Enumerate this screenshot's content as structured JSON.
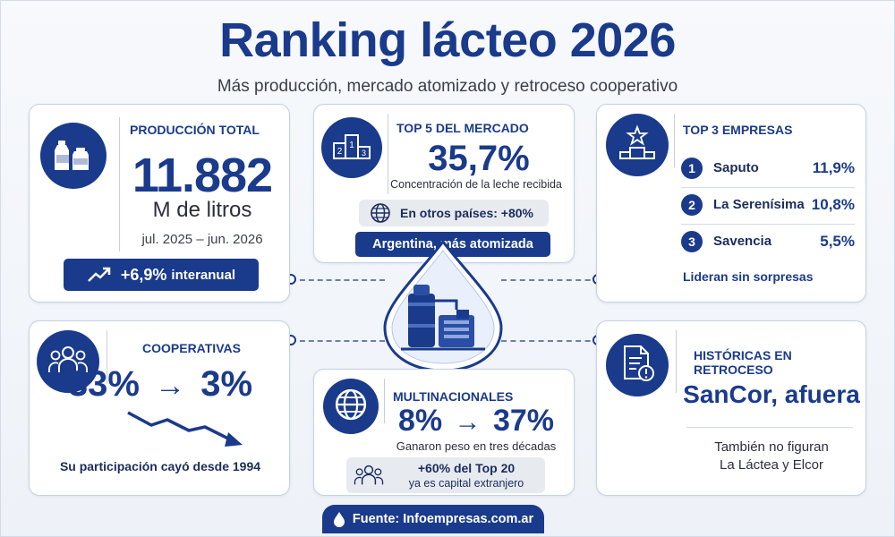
{
  "header": {
    "title": "Ranking lácteo 2026",
    "subtitle": "Más producción, mercado atomizado y retroceso cooperativo"
  },
  "produccion": {
    "label": "PRODUCCIÓN TOTAL",
    "value": "11.882",
    "unit": "M de litros",
    "period": "jul. 2025 – jun. 2026",
    "growth": "+6,9%",
    "growth_suffix": "interanual",
    "icon": "milk-bottles-icon"
  },
  "top5": {
    "label": "TOP 5 DEL MERCADO",
    "value": "35,7%",
    "caption": "Concentración de la leche recibida",
    "otros": "En otros países: +80%",
    "banner": "Argentina, más atomizada",
    "icon": "podium-icon"
  },
  "top3": {
    "label": "TOP 3 EMPRESAS",
    "items": [
      {
        "rank": "1",
        "name": "Saputo",
        "value": "11,9%"
      },
      {
        "rank": "2",
        "name": "La Serenísima",
        "value": "10,8%"
      },
      {
        "rank": "3",
        "name": "Savencia",
        "value": "5,5%"
      }
    ],
    "footer": "Lideran sin sorpresas",
    "icon": "star-podium-icon"
  },
  "cooperativas": {
    "label": "COOPERATIVAS",
    "from": "33%",
    "to": "3%",
    "arrow": "→",
    "caption": "Su participación cayó desde 1994",
    "icon": "people-group-icon"
  },
  "multinacionales": {
    "label": "MULTINACIONALES",
    "from": "8%",
    "to": "37%",
    "arrow": "→",
    "caption": "Ganaron peso en tres décadas",
    "note_line1": "+60% del Top 20",
    "note_line2": "ya es capital extranjero",
    "icon": "globe-icon"
  },
  "historicas": {
    "label": "HISTÓRICAS EN RETROCESO",
    "headline": "SanCor, afuera",
    "note_line1": "También no figuran",
    "note_line2": "La Láctea y Elcor",
    "icon": "document-alert-icon"
  },
  "footer": {
    "source": "Fuente: Infoempresas.com.ar",
    "icon": "milk-drop-icon"
  },
  "colors": {
    "accent": "#1a3a8c",
    "text": "#1b2c5e",
    "card_border": "#c5d1e6"
  }
}
